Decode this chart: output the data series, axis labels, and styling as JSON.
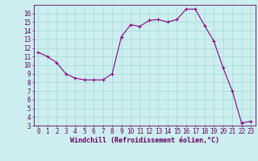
{
  "x": [
    0,
    1,
    2,
    3,
    4,
    5,
    6,
    7,
    8,
    9,
    10,
    11,
    12,
    13,
    14,
    15,
    16,
    17,
    18,
    19,
    20,
    21,
    22,
    23
  ],
  "y": [
    11.5,
    11.0,
    10.3,
    9.0,
    8.5,
    8.3,
    8.3,
    8.3,
    9.0,
    13.3,
    14.7,
    14.5,
    15.2,
    15.3,
    15.0,
    15.3,
    16.5,
    16.5,
    14.6,
    12.8,
    9.7,
    7.0,
    3.3,
    3.5
  ],
  "line_color": "#880088",
  "marker": "+",
  "marker_size": 3,
  "bg_color": "#cceeee",
  "grid_color": "#aadddd",
  "axis_label_color": "#660066",
  "tick_color": "#660066",
  "spine_color": "#660066",
  "xlabel": "Windchill (Refroidissement éolien,°C)",
  "xlim": [
    -0.5,
    23.5
  ],
  "ylim": [
    3,
    17
  ],
  "yticks": [
    3,
    4,
    5,
    6,
    7,
    8,
    9,
    10,
    11,
    12,
    13,
    14,
    15,
    16
  ],
  "xticks": [
    0,
    1,
    2,
    3,
    4,
    5,
    6,
    7,
    8,
    9,
    10,
    11,
    12,
    13,
    14,
    15,
    16,
    17,
    18,
    19,
    20,
    21,
    22,
    23
  ],
  "font_size": 5.5,
  "label_font_size": 6.0
}
